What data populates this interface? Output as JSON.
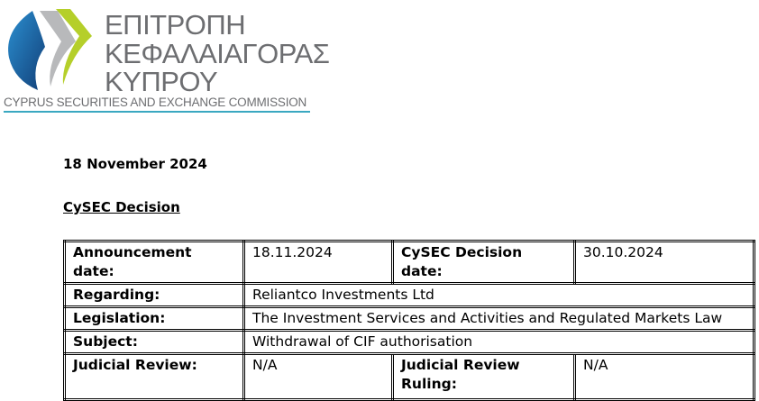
{
  "logo": {
    "greek_lines": [
      "ΕΠΙΤΡΟΠΗ",
      "ΚΕΦΑΛΑΙΑΓΟΡΑΣ",
      "ΚΥΠΡΟΥ"
    ],
    "english": "CYPRUS SECURITIES AND EXCHANGE COMMISSION",
    "colors": {
      "blue": "#1d5c9c",
      "gray": "#b8b9bb",
      "green": "#b5cf2a"
    }
  },
  "document": {
    "date": "18 November 2024",
    "heading": "CySEC Decision"
  },
  "table": {
    "announcement_label": "Announcement date:",
    "announcement_value": "18.11.2024",
    "decision_label": "CySEC Decision date:",
    "decision_value": "30.10.2024",
    "regarding_label": "Regarding:",
    "regarding_value": "Reliantco Investments Ltd",
    "legislation_label": "Legislation:",
    "legislation_value": "The Investment Services and Activities and Regulated Markets Law",
    "subject_label": "Subject:",
    "subject_value": "Withdrawal of CIF authorisation",
    "judicial_label": "Judicial Review:",
    "judicial_value": "N/A",
    "ruling_label": "Judicial Review Ruling:",
    "ruling_value": "N/A"
  }
}
